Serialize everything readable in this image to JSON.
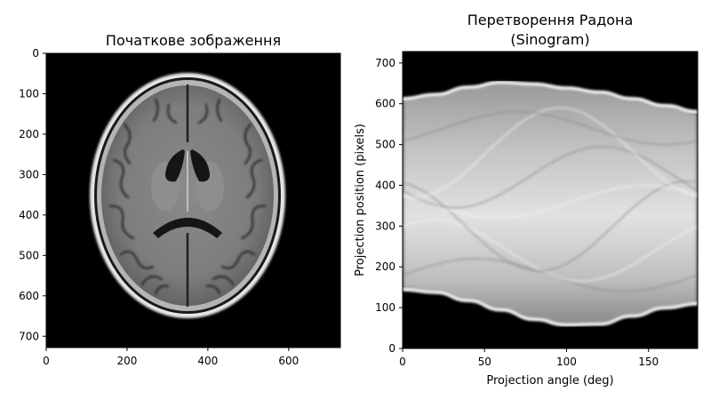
{
  "chart_data": [
    {
      "type": "heatmap",
      "title": "Початкове зображення",
      "image_subject": "axial MRI brain slice (grayscale)",
      "colormap": "gray",
      "image_size": [
        728,
        728
      ],
      "xlim": [
        0,
        728
      ],
      "ylim": [
        728,
        0
      ],
      "xticks": [
        0,
        200,
        400,
        600
      ],
      "yticks": [
        0,
        100,
        200,
        300,
        400,
        500,
        600,
        700
      ],
      "xlabel": "",
      "ylabel": ""
    },
    {
      "type": "heatmap",
      "title_lines": [
        "Перетворення Радона",
        "(Sinogram)"
      ],
      "colormap": "gray",
      "xlabel": "Projection angle (deg)",
      "ylabel": "Projection position (pixels)",
      "xlim": [
        0,
        180
      ],
      "ylim": [
        0,
        728
      ],
      "xticks": [
        0,
        50,
        100,
        150
      ],
      "yticks": [
        0,
        100,
        200,
        300,
        400,
        500,
        600,
        700
      ],
      "envelope": {
        "angles": [
          0,
          20,
          40,
          60,
          80,
          100,
          120,
          140,
          160,
          180
        ],
        "upper": [
          612,
          622,
          640,
          652,
          648,
          638,
          628,
          612,
          595,
          580
        ],
        "lower": [
          145,
          138,
          118,
          95,
          72,
          58,
          60,
          80,
          100,
          110
        ]
      }
    }
  ]
}
